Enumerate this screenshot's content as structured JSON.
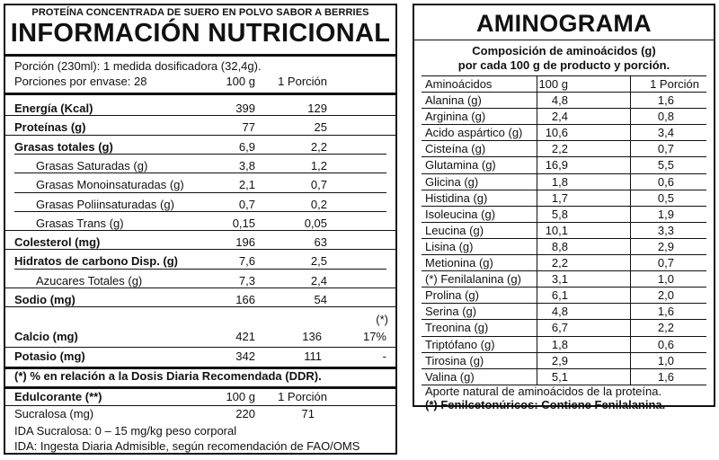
{
  "nutrition": {
    "product": "PROTEÍNA CONCENTRADA DE SUERO EN POLVO SABOR A BERRIES",
    "title": "INFORMACIÓN NUTRICIONAL",
    "serving": "Porción (230ml): 1 medida dosificadora (32,4g).",
    "servings_per": "Porciones por envase: 28",
    "col_100g": "100 g",
    "col_portion": "1 Porción",
    "rows": [
      {
        "label": "Energía (Kcal)",
        "v100": "399",
        "vpor": "129",
        "bold": true,
        "indent": false
      },
      {
        "label": "Proteínas (g)",
        "v100": "77",
        "vpor": "25",
        "bold": true,
        "indent": false
      },
      {
        "label": "Grasas totales (g)",
        "v100": "6,9",
        "vpor": "2,2",
        "bold": true,
        "indent": false
      },
      {
        "label": "Grasas Saturadas (g)",
        "v100": "3,8",
        "vpor": "1,2",
        "bold": false,
        "indent": true
      },
      {
        "label": "Grasas Monoinsaturadas (g)",
        "v100": "2,1",
        "vpor": "0,7",
        "bold": false,
        "indent": true
      },
      {
        "label": "Grasas Poliinsaturadas (g)",
        "v100": "0,7",
        "vpor": "0,2",
        "bold": false,
        "indent": true
      },
      {
        "label": "Grasas Trans (g)",
        "v100": "0,15",
        "vpor": "0,05",
        "bold": false,
        "indent": true
      },
      {
        "label": "Colesterol (mg)",
        "v100": "196",
        "vpor": "63",
        "bold": true,
        "indent": false
      },
      {
        "label": "Hidratos de carbono Disp. (g)",
        "v100": "7,6",
        "vpor": "2,5",
        "bold": true,
        "indent": false
      },
      {
        "label": "Azucares Totales (g)",
        "v100": "7,3",
        "vpor": "2,4",
        "bold": false,
        "indent": true
      },
      {
        "label": "Sodio (mg)",
        "v100": "166",
        "vpor": "54",
        "bold": true,
        "indent": false
      }
    ],
    "ddr_mark": "(*)",
    "minerals": [
      {
        "label": "Calcio (mg)",
        "v100": "421",
        "vpor": "136",
        "ddr": "17%"
      },
      {
        "label": "Potasio (mg)",
        "v100": "342",
        "vpor": "111",
        "ddr": "-"
      }
    ],
    "ddr_note": "(*) % en relación a la Dosis Diaria Recomendada (DDR).",
    "sweetener_label": "Edulcorante (**)",
    "sweetener_100g": "100 g",
    "sweetener_portion": "1 Porción",
    "sucralose_label": "Sucralosa (mg)",
    "sucralose_100g": "220",
    "sucralose_portion": "71",
    "ida_line": "IDA Sucralosa: 0 – 15 mg/kg peso corporal",
    "ida_note": "IDA: Ingesta Diaria Admisible, según recomendación de FAO/OMS"
  },
  "aminogram": {
    "title": "AMINOGRAMA",
    "subtitle_1": "Composición de aminoácidos (g)",
    "subtitle_2": "por cada 100 g de producto y porción.",
    "col_name": "Aminoácidos",
    "col_100g": "100 g",
    "col_portion": "1 Porción",
    "rows": [
      {
        "name": "Alanina (g)",
        "v100": "4,8",
        "vpor": "1,6"
      },
      {
        "name": "Arginina (g)",
        "v100": "2,4",
        "vpor": "0,8"
      },
      {
        "name": "Acido aspártico (g)",
        "v100": "10,6",
        "vpor": "3,4"
      },
      {
        "name": "Cisteína (g)",
        "v100": "2,2",
        "vpor": "0,7"
      },
      {
        "name": "Glutamina (g)",
        "v100": "16,9",
        "vpor": "5,5"
      },
      {
        "name": "Glicina (g)",
        "v100": "1,8",
        "vpor": "0,6"
      },
      {
        "name": "Histidina (g)",
        "v100": "1,7",
        "vpor": "0,5"
      },
      {
        "name": "Isoleucina (g)",
        "v100": "5,8",
        "vpor": "1,9"
      },
      {
        "name": "Leucina (g)",
        "v100": "10,1",
        "vpor": "3,3"
      },
      {
        "name": "Lisina (g)",
        "v100": "8,8",
        "vpor": "2,9"
      },
      {
        "name": "Metionina (g)",
        "v100": "2,2",
        "vpor": "0,7"
      },
      {
        "name": "(*) Fenilalanina (g)",
        "v100": "3,1",
        "vpor": "1,0"
      },
      {
        "name": "Prolina (g)",
        "v100": "6,1",
        "vpor": "2,0"
      },
      {
        "name": "Serina (g)",
        "v100": "4,8",
        "vpor": "1,6"
      },
      {
        "name": "Treonina (g)",
        "v100": "6,7",
        "vpor": "2,2"
      },
      {
        "name": "Triptófano (g)",
        "v100": "1,8",
        "vpor": "0,6"
      },
      {
        "name": "Tirosina (g)",
        "v100": "2,9",
        "vpor": "1,0"
      },
      {
        "name": "Valina (g)",
        "v100": "5,1",
        "vpor": "1,6"
      }
    ],
    "note_1": "Aporte natural de aminoácidos de la proteína.",
    "note_2": "(*) Fenilcetonúricos: Contiene Fenilalanina."
  }
}
